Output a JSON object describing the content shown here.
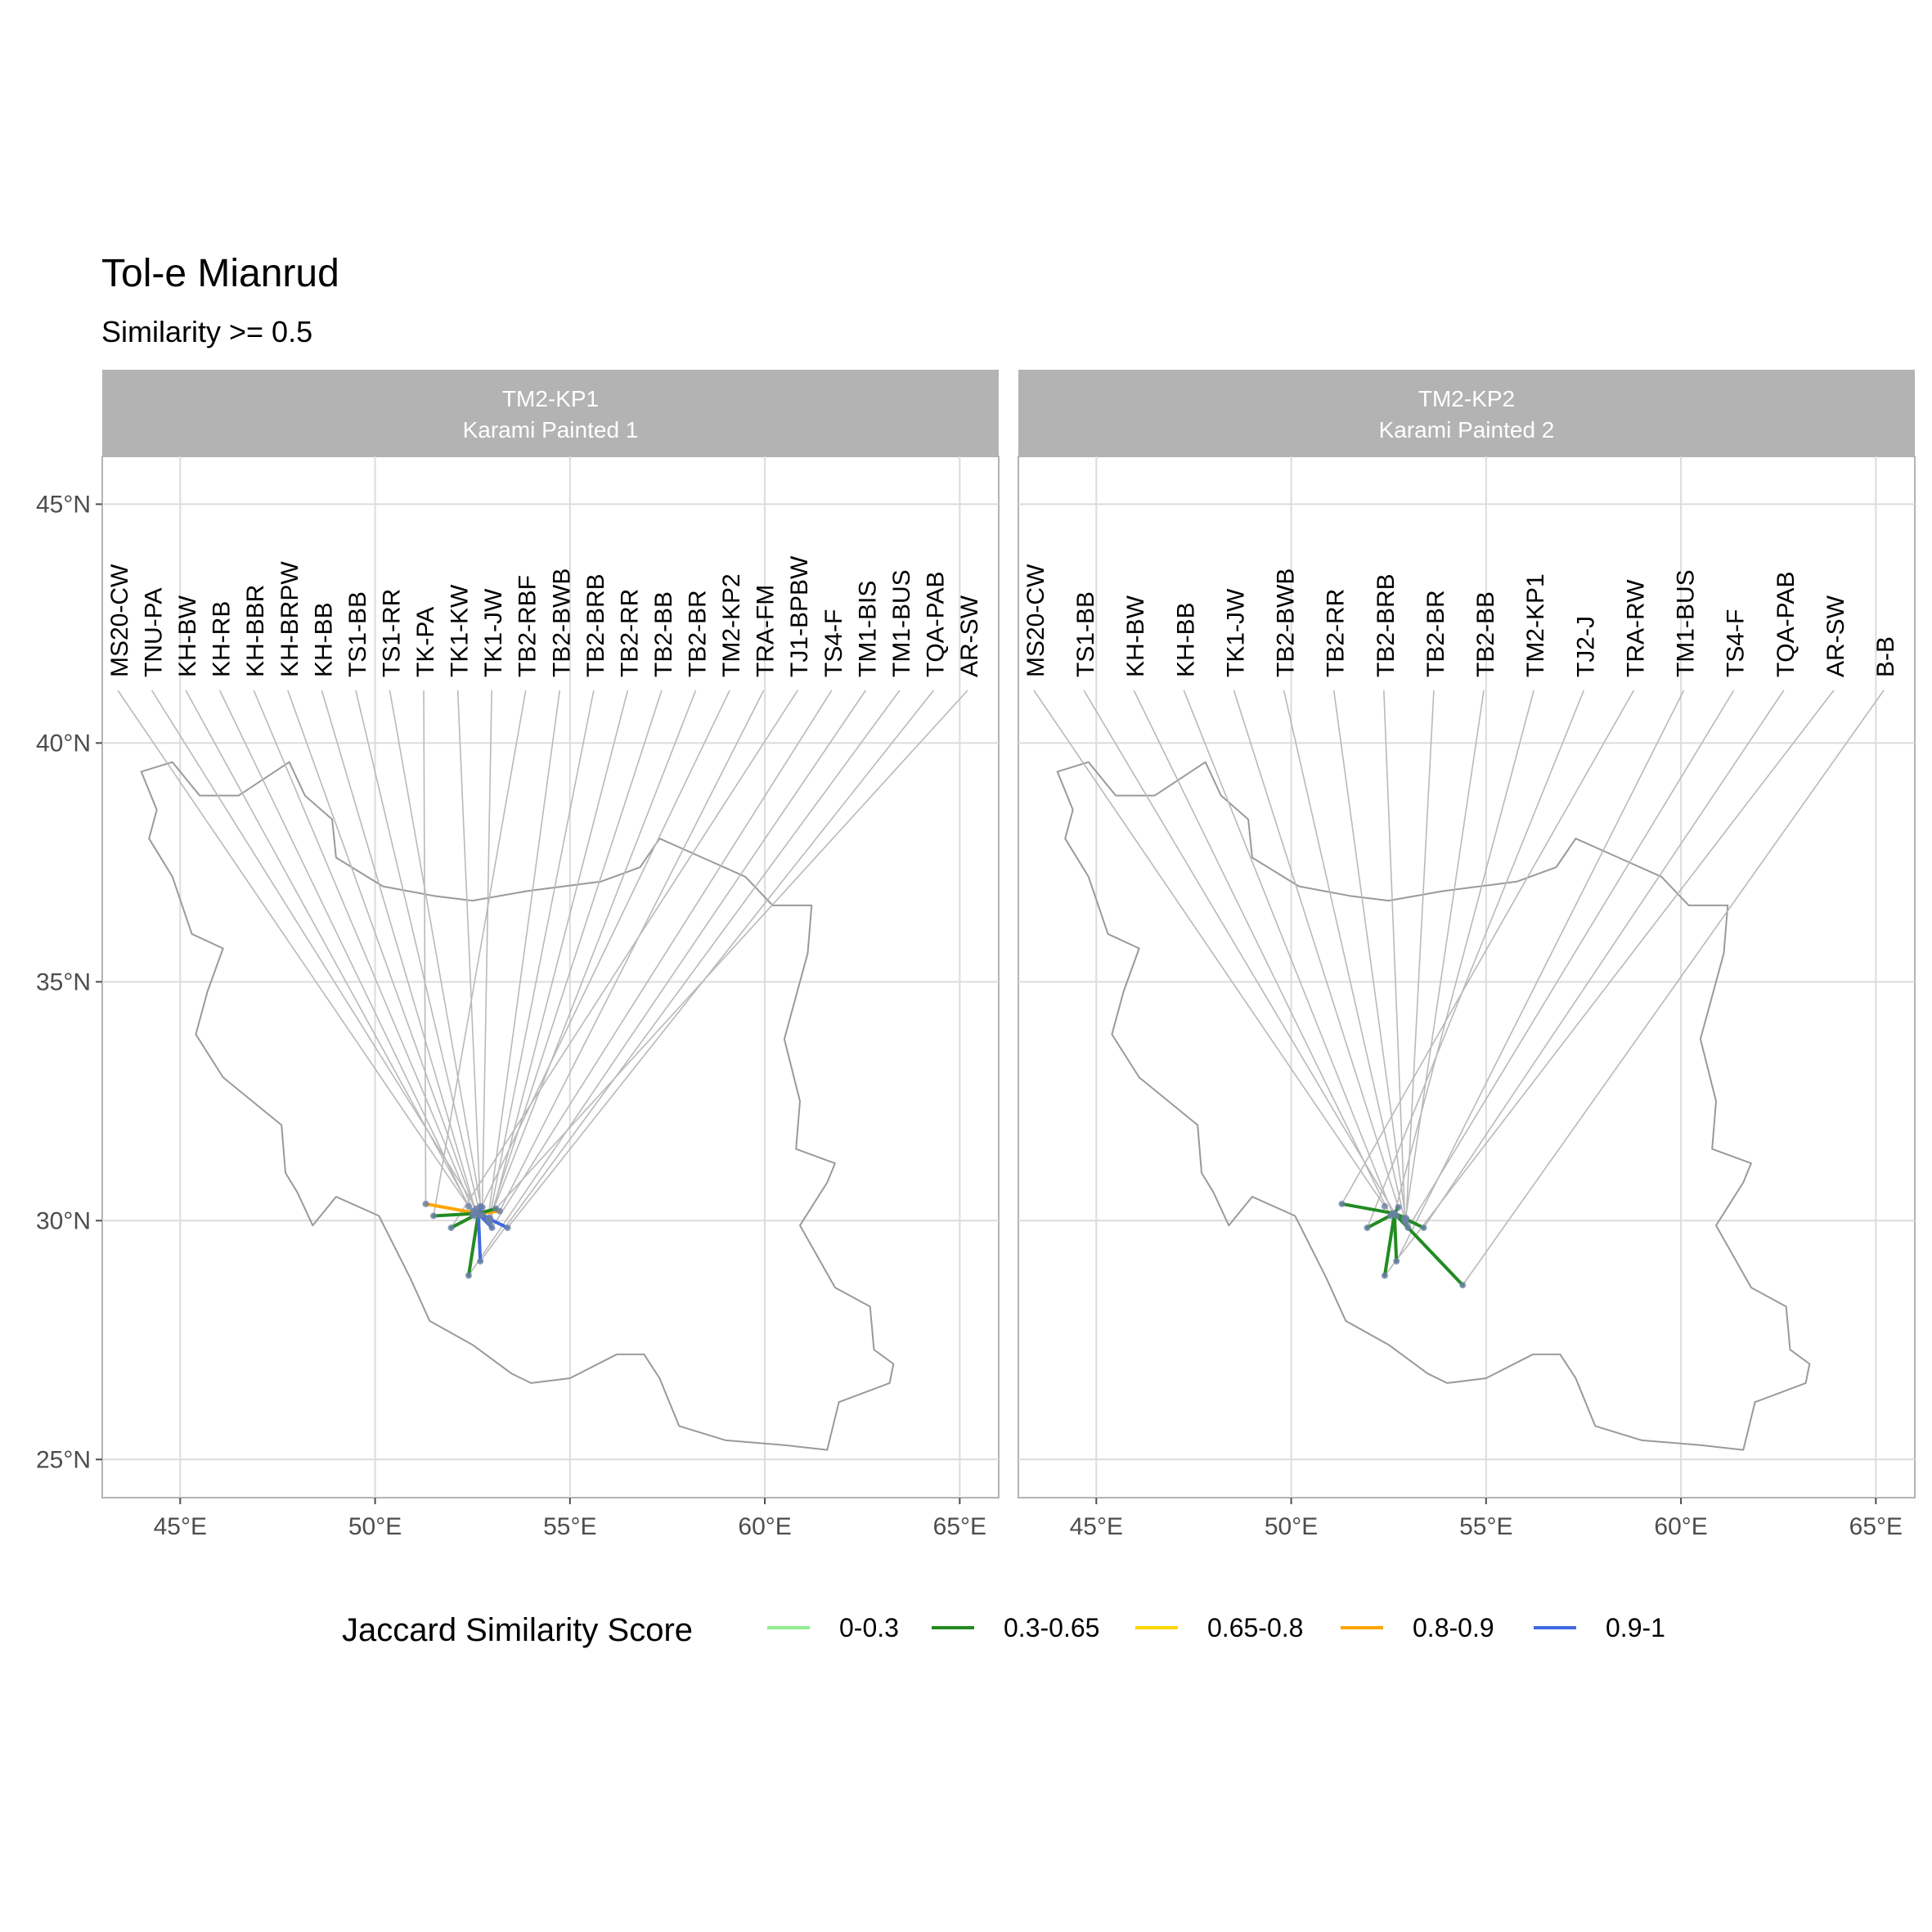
{
  "title": "Tol-e Mianrud",
  "subtitle": "Similarity >= 0.5",
  "legend": {
    "title": "Jaccard Similarity Score",
    "items": [
      {
        "label": "0-0.3",
        "color": "#90ee90"
      },
      {
        "label": "0.3-0.65",
        "color": "#228b22"
      },
      {
        "label": "0.65-0.8",
        "color": "#ffd700"
      },
      {
        "label": "0.8-0.9",
        "color": "#ffa500"
      },
      {
        "label": "0.9-1",
        "color": "#4169e1"
      }
    ]
  },
  "axes": {
    "x_ticks": [
      {
        "value": 45,
        "label": "45°E"
      },
      {
        "value": 50,
        "label": "50°E"
      },
      {
        "value": 55,
        "label": "55°E"
      },
      {
        "value": 60,
        "label": "60°E"
      },
      {
        "value": 65,
        "label": "65°E"
      }
    ],
    "y_ticks": [
      {
        "value": 25,
        "label": "25°N"
      },
      {
        "value": 30,
        "label": "30°N"
      },
      {
        "value": 35,
        "label": "35°N"
      },
      {
        "value": 40,
        "label": "40°N"
      },
      {
        "value": 45,
        "label": "45°N"
      }
    ],
    "xlim": [
      43,
      66
    ],
    "ylim": [
      24.2,
      46
    ]
  },
  "colors": {
    "country_outline": "#9a9a9a",
    "leader_line": "#b9b9b9",
    "site_point": "#6a7fa8",
    "strip": "#b3b3b3"
  },
  "chart_data": {
    "type": "map",
    "focal_site": {
      "lon": 52.65,
      "lat": 30.15
    },
    "country_outline": [
      [
        44.0,
        39.4
      ],
      [
        44.8,
        39.6
      ],
      [
        45.5,
        38.9
      ],
      [
        46.5,
        38.9
      ],
      [
        47.8,
        39.6
      ],
      [
        48.2,
        38.9
      ],
      [
        48.9,
        38.4
      ],
      [
        49.0,
        37.6
      ],
      [
        50.2,
        37.0
      ],
      [
        51.5,
        36.8
      ],
      [
        52.5,
        36.7
      ],
      [
        53.9,
        36.9
      ],
      [
        55.8,
        37.1
      ],
      [
        56.8,
        37.4
      ],
      [
        57.3,
        38.0
      ],
      [
        58.4,
        37.6
      ],
      [
        59.5,
        37.2
      ],
      [
        60.2,
        36.6
      ],
      [
        61.2,
        36.6
      ],
      [
        61.1,
        35.6
      ],
      [
        60.5,
        33.8
      ],
      [
        60.9,
        32.5
      ],
      [
        60.8,
        31.5
      ],
      [
        61.8,
        31.2
      ],
      [
        61.6,
        30.8
      ],
      [
        60.9,
        29.9
      ],
      [
        61.8,
        28.6
      ],
      [
        62.7,
        28.2
      ],
      [
        62.8,
        27.3
      ],
      [
        63.3,
        27.0
      ],
      [
        63.2,
        26.6
      ],
      [
        61.9,
        26.2
      ],
      [
        61.6,
        25.2
      ],
      [
        60.5,
        25.3
      ],
      [
        59.0,
        25.4
      ],
      [
        57.8,
        25.7
      ],
      [
        57.3,
        26.7
      ],
      [
        56.9,
        27.2
      ],
      [
        56.2,
        27.2
      ],
      [
        55.0,
        26.7
      ],
      [
        54.0,
        26.6
      ],
      [
        53.5,
        26.8
      ],
      [
        52.5,
        27.4
      ],
      [
        51.4,
        27.9
      ],
      [
        50.9,
        28.8
      ],
      [
        50.1,
        30.1
      ],
      [
        49.0,
        30.5
      ],
      [
        48.4,
        29.9
      ],
      [
        48.0,
        30.6
      ],
      [
        47.7,
        31.0
      ],
      [
        47.6,
        32.0
      ],
      [
        46.1,
        33.0
      ],
      [
        45.4,
        33.9
      ],
      [
        45.7,
        34.8
      ],
      [
        46.1,
        35.7
      ],
      [
        45.3,
        36.0
      ],
      [
        44.8,
        37.2
      ],
      [
        44.2,
        38.0
      ],
      [
        44.4,
        38.6
      ],
      [
        44.0,
        39.4
      ]
    ],
    "panels": [
      {
        "id": "TM2-KP1",
        "name": "Karami Painted 1",
        "sites": [
          {
            "label": "MS20-CW",
            "lon": 52.4,
            "lat": 30.3,
            "class": ""
          },
          {
            "label": "TNU-PA",
            "lon": 52.6,
            "lat": 30.25,
            "class": ""
          },
          {
            "label": "KH-BW",
            "lon": 52.55,
            "lat": 30.1,
            "class": ""
          },
          {
            "label": "KH-RB",
            "lon": 52.5,
            "lat": 30.12,
            "class": ""
          },
          {
            "label": "KH-BBR",
            "lon": 52.52,
            "lat": 30.2,
            "class": ""
          },
          {
            "label": "KH-BRPW",
            "lon": 52.58,
            "lat": 30.18,
            "class": ""
          },
          {
            "label": "KH-BB",
            "lon": 52.6,
            "lat": 30.15,
            "class": ""
          },
          {
            "label": "TS1-BB",
            "lon": 52.7,
            "lat": 30.1,
            "class": ""
          },
          {
            "label": "TS1-RR",
            "lon": 52.75,
            "lat": 30.12,
            "class": ""
          },
          {
            "label": "TK-PA",
            "lon": 51.3,
            "lat": 30.35,
            "class": "0.8-0.9"
          },
          {
            "label": "TK1-KW",
            "lon": 52.7,
            "lat": 30.3,
            "class": "0.9-1"
          },
          {
            "label": "TK1-JW",
            "lon": 52.75,
            "lat": 30.28,
            "class": "0.9-1"
          },
          {
            "label": "TB2-RBF",
            "lon": 51.5,
            "lat": 30.1,
            "class": "0.3-0.65"
          },
          {
            "label": "TB2-BWB",
            "lon": 52.9,
            "lat": 30.05,
            "class": "0.9-1"
          },
          {
            "label": "TB2-BRB",
            "lon": 52.92,
            "lat": 30.0,
            "class": "0.9-1"
          },
          {
            "label": "TB2-RR",
            "lon": 52.95,
            "lat": 29.95,
            "class": "0.3-0.65"
          },
          {
            "label": "TB2-BB",
            "lon": 52.93,
            "lat": 30.02,
            "class": "0.9-1"
          },
          {
            "label": "TB2-BR",
            "lon": 52.95,
            "lat": 30.05,
            "class": "0.9-1"
          },
          {
            "label": "TM2-KP2",
            "lon": 52.65,
            "lat": 30.15,
            "class": "0.9-1"
          },
          {
            "label": "TRA-FM",
            "lon": 53.2,
            "lat": 30.2,
            "class": "0.8-0.9"
          },
          {
            "label": "TJ1-BPBW",
            "lon": 51.95,
            "lat": 29.85,
            "class": "0.3-0.65"
          },
          {
            "label": "TS4-F",
            "lon": 53.0,
            "lat": 29.85,
            "class": "0.9-1"
          },
          {
            "label": "TM1-BIS",
            "lon": 52.4,
            "lat": 28.85,
            "class": "0.3-0.65"
          },
          {
            "label": "TM1-BUS",
            "lon": 52.7,
            "lat": 29.15,
            "class": "0.9-1"
          },
          {
            "label": "TQA-PAB",
            "lon": 53.4,
            "lat": 29.85,
            "class": "0.9-1"
          },
          {
            "label": "AR-SW",
            "lon": 53.1,
            "lat": 30.25,
            "class": "0.3-0.65"
          }
        ]
      },
      {
        "id": "TM2-KP2",
        "name": "Karami Painted 2",
        "sites": [
          {
            "label": "MS20-CW",
            "lon": 52.4,
            "lat": 30.3,
            "class": ""
          },
          {
            "label": "TS1-BB",
            "lon": 52.7,
            "lat": 30.1,
            "class": ""
          },
          {
            "label": "KH-BW",
            "lon": 52.55,
            "lat": 30.1,
            "class": ""
          },
          {
            "label": "KH-BB",
            "lon": 52.6,
            "lat": 30.15,
            "class": ""
          },
          {
            "label": "TK1-JW",
            "lon": 52.75,
            "lat": 30.28,
            "class": "0.3-0.65"
          },
          {
            "label": "TB2-BWB",
            "lon": 52.9,
            "lat": 30.05,
            "class": "0.3-0.65"
          },
          {
            "label": "TB2-RR",
            "lon": 52.95,
            "lat": 29.95,
            "class": "0.3-0.65"
          },
          {
            "label": "TB2-BRB",
            "lon": 52.92,
            "lat": 30.0,
            "class": "0.3-0.65"
          },
          {
            "label": "TB2-BR",
            "lon": 52.95,
            "lat": 30.05,
            "class": "0.3-0.65"
          },
          {
            "label": "TB2-BB",
            "lon": 52.93,
            "lat": 30.02,
            "class": "0.3-0.65"
          },
          {
            "label": "TM2-KP1",
            "lon": 52.65,
            "lat": 30.15,
            "class": "0.9-1"
          },
          {
            "label": "TJ2-J",
            "lon": 51.95,
            "lat": 29.85,
            "class": "0.3-0.65"
          },
          {
            "label": "TRA-RW",
            "lon": 51.3,
            "lat": 30.35,
            "class": "0.3-0.65"
          },
          {
            "label": "TM1-BUS",
            "lon": 52.7,
            "lat": 29.15,
            "class": "0.3-0.65"
          },
          {
            "label": "TS4-F",
            "lon": 53.0,
            "lat": 29.85,
            "class": "0.3-0.65"
          },
          {
            "label": "TQA-PAB",
            "lon": 53.4,
            "lat": 29.85,
            "class": "0.3-0.65"
          },
          {
            "label": "AR-SW",
            "lon": 52.4,
            "lat": 28.85,
            "class": "0.3-0.65"
          },
          {
            "label": "B-B",
            "lon": 54.4,
            "lat": 28.65,
            "class": "0.3-0.65"
          }
        ]
      }
    ]
  }
}
